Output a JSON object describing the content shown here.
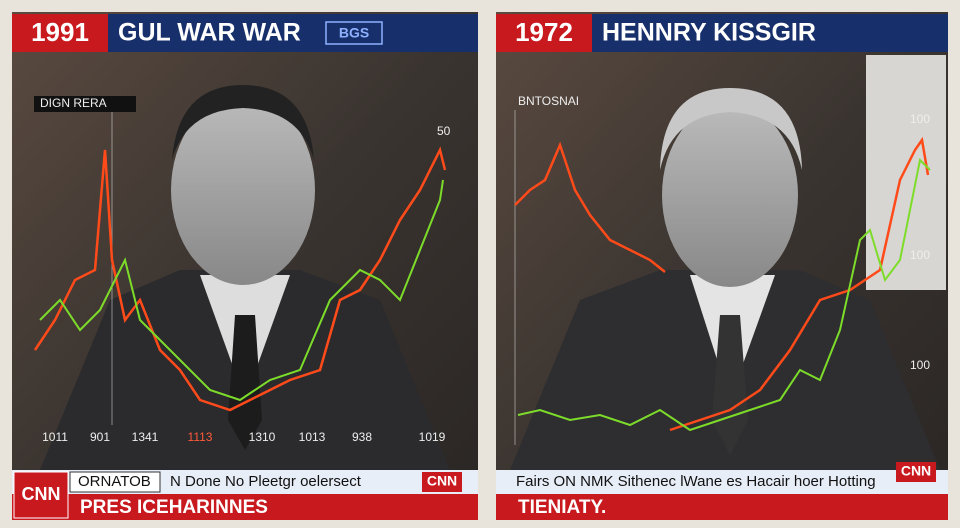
{
  "left": {
    "year": "1991",
    "headline": "GUL WAR WAR",
    "badge": "BGS",
    "chart_label": "DIGN RERA",
    "axis_labels": [
      "1011",
      "901",
      "1341",
      "1113",
      "1310",
      "1013",
      "938",
      "1019"
    ],
    "right_label": "50",
    "ticker": "ORNATOB",
    "ticker_text": "N Done No Pleetgr oelersect",
    "lower_title": "PRES ICEHARINNES",
    "logo": "CNN"
  },
  "right": {
    "year": "1972",
    "headline": "HENNRY KISSGIR",
    "chart_label": "BNTOSNAI",
    "right_labels": [
      "100",
      "100",
      "100"
    ],
    "ticker_text": "Fairs ON NMK Sithenec lWane es Hacair hoer Hotting",
    "lower_title": "TIENIATY.",
    "logo": "CNN"
  }
}
